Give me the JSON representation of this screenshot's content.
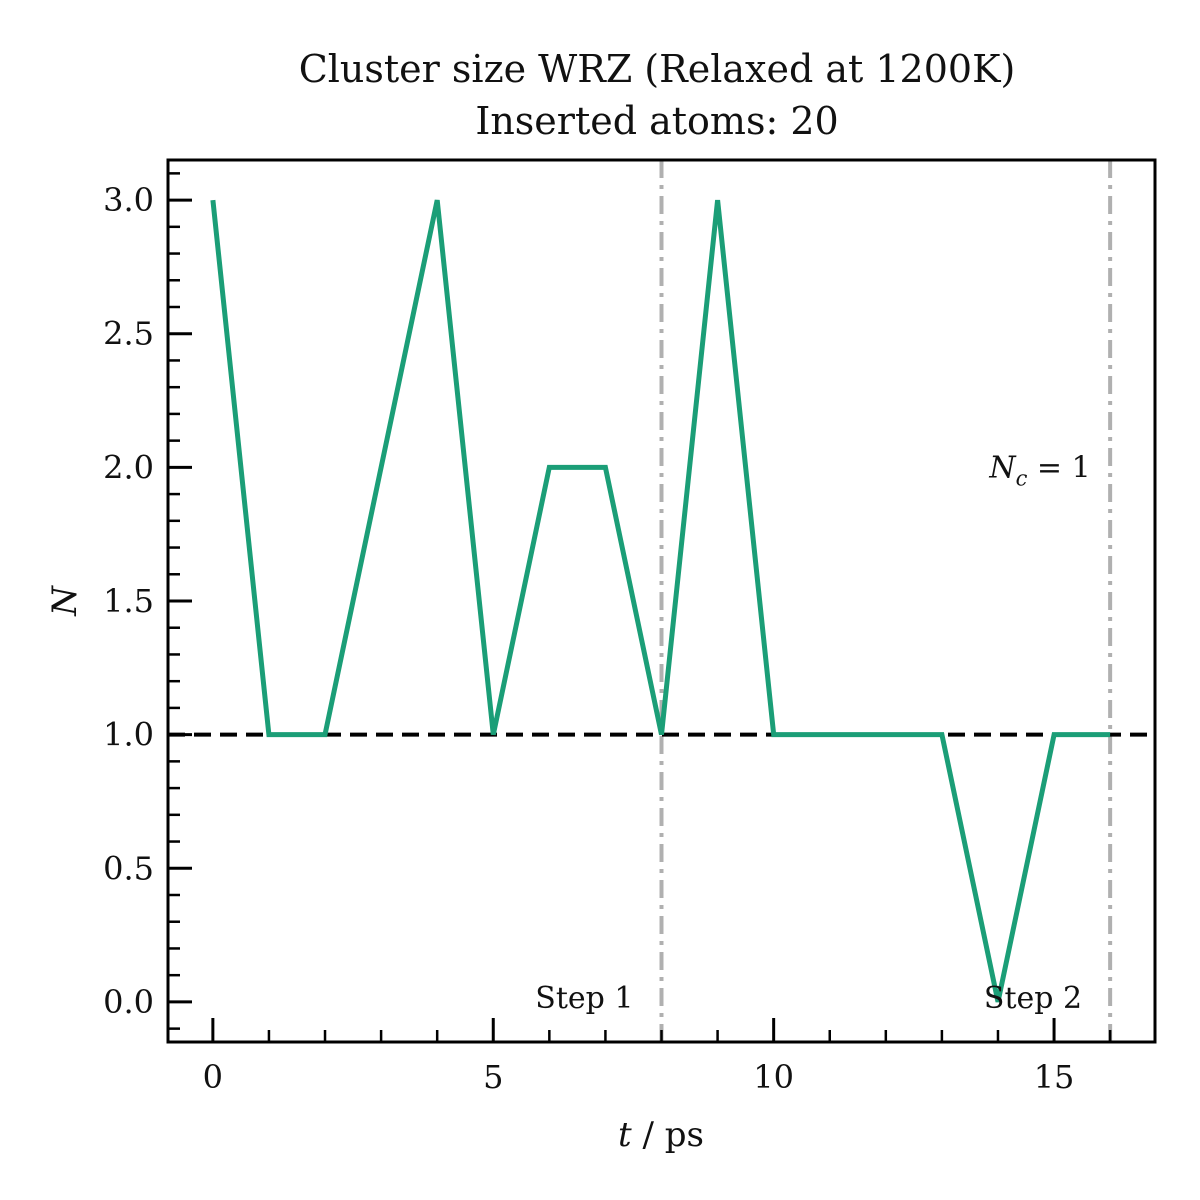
{
  "chart_data": {
    "type": "line",
    "title": "Cluster size WRZ (Relaxed at 1200K)",
    "subtitle": "Inserted atoms: 20",
    "xlabel": "t / ps",
    "ylabel": "N",
    "xlim": [
      -0.8,
      16.8
    ],
    "ylim": [
      -0.15,
      3.15
    ],
    "x_ticks": [
      0,
      5,
      10,
      15
    ],
    "x_tick_labels": [
      "0",
      "5",
      "10",
      "15"
    ],
    "y_ticks": [
      0.0,
      0.5,
      1.0,
      1.5,
      2.0,
      2.5,
      3.0
    ],
    "y_tick_labels": [
      "0.0",
      "0.5",
      "1.0",
      "1.5",
      "2.0",
      "2.5",
      "3.0"
    ],
    "grid": false,
    "series": [
      {
        "color": "#1b9e77",
        "x": [
          0,
          1,
          2,
          3,
          4,
          5,
          6,
          7,
          8,
          9,
          10,
          11,
          12,
          13,
          14,
          15,
          16
        ],
        "y": [
          3,
          1,
          1,
          2,
          3,
          1,
          2,
          2,
          1,
          3,
          1,
          1,
          1,
          1,
          0,
          1,
          1
        ]
      }
    ],
    "reference_line": {
      "y": 1.0,
      "style": "dashed",
      "color": "#000000"
    },
    "step_lines": [
      {
        "x": 8,
        "label": "Step 1",
        "color": "#b0b0b0"
      },
      {
        "x": 16,
        "label": "Step 2",
        "color": "#b0b0b0"
      }
    ],
    "annotations": [
      {
        "text_main": "N",
        "text_sub": "c",
        "text_rest": " = 1",
        "x": 14.75,
        "y": 2.0
      }
    ]
  }
}
